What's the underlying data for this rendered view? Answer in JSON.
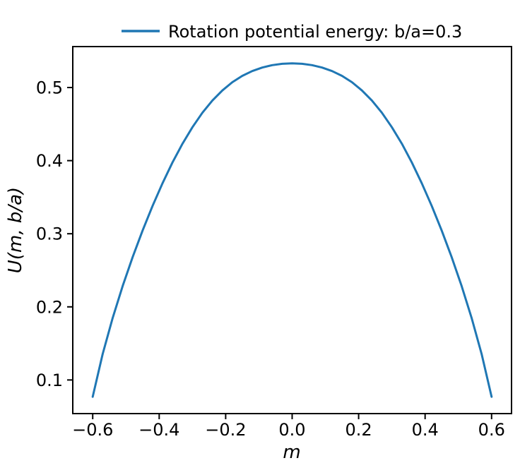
{
  "colors": {
    "background": "#ffffff",
    "axis": "#000000",
    "text": "#000000",
    "line": "#1f77b4"
  },
  "chart_data": {
    "type": "line",
    "title": "",
    "xlabel": "m",
    "ylabel": "U(m, b/a)",
    "grid": false,
    "legend": {
      "position": "upper-center-outside",
      "frame": false,
      "entries": [
        {
          "label": "Rotation potential energy: b/a=0.3",
          "color": "#1f77b4"
        }
      ]
    },
    "xlim": [
      -0.66,
      0.66
    ],
    "ylim": [
      0.054,
      0.556
    ],
    "xtick_values": [
      -0.6,
      -0.4,
      -0.2,
      0.0,
      0.2,
      0.4,
      0.6
    ],
    "xtick_labels": [
      "−0.6",
      "−0.4",
      "−0.2",
      "0.0",
      "0.2",
      "0.4",
      "0.6"
    ],
    "ytick_values": [
      0.1,
      0.2,
      0.3,
      0.4,
      0.5
    ],
    "ytick_labels": [
      "0.1",
      "0.2",
      "0.3",
      "0.4",
      "0.5"
    ],
    "peak": {
      "m": 0.0,
      "U": 0.533
    },
    "endpoints": {
      "m": [
        -0.6,
        0.6
      ],
      "U": 0.077
    },
    "series": [
      {
        "name": "Rotation potential energy: b/a=0.3",
        "color": "#1f77b4",
        "x": [
          -0.6,
          -0.57,
          -0.54,
          -0.51,
          -0.48,
          -0.45,
          -0.42,
          -0.39,
          -0.36,
          -0.33,
          -0.3,
          -0.27,
          -0.24,
          -0.21,
          -0.18,
          -0.15,
          -0.12,
          -0.09,
          -0.06,
          -0.03,
          0.0,
          0.03,
          0.06,
          0.09,
          0.12,
          0.15,
          0.18,
          0.21,
          0.24,
          0.27,
          0.3,
          0.33,
          0.36,
          0.39,
          0.42,
          0.45,
          0.48,
          0.51,
          0.54,
          0.57,
          0.6
        ],
        "y": [
          0.077,
          0.1355,
          0.1849,
          0.2284,
          0.2679,
          0.3043,
          0.338,
          0.369,
          0.3975,
          0.4232,
          0.4458,
          0.4655,
          0.4822,
          0.496,
          0.5072,
          0.5159,
          0.5225,
          0.5273,
          0.5306,
          0.5324,
          0.533,
          0.5324,
          0.5306,
          0.5273,
          0.5225,
          0.5159,
          0.5072,
          0.496,
          0.4822,
          0.4655,
          0.4458,
          0.4232,
          0.3975,
          0.369,
          0.338,
          0.3043,
          0.2679,
          0.2284,
          0.1849,
          0.1355,
          0.077
        ]
      }
    ]
  }
}
